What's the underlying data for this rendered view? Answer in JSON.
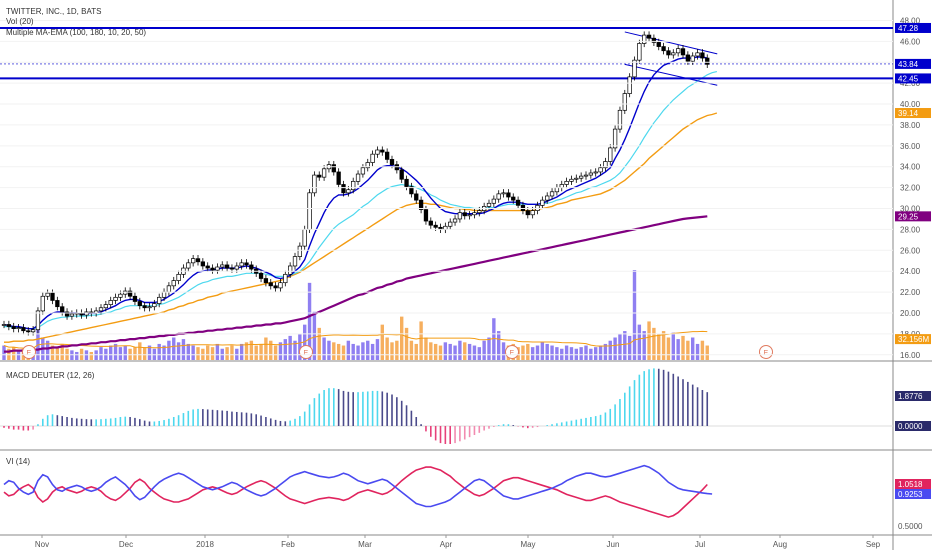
{
  "legends": {
    "main_title": "TWITTER, INC., 1D, BATS",
    "volume": "Vol (20)",
    "ma": "Multiple MA-EMA (100, 180, 10, 20, 50)",
    "macd": "MACD DEUTER (12, 26)",
    "vi": "VI (14)"
  },
  "colors": {
    "up_candle": "#ffffff",
    "down_candle": "#000000",
    "wick": "#000000",
    "resistance": "#0000cc",
    "ema10": "#0000cc",
    "ema20": "#4dd8ee",
    "ma50": "#f39c12",
    "ma180": "#800080",
    "vol_up": "#7b68ee",
    "vol_down": "#f5a142",
    "vol_ma": "#f39c12",
    "macd_pos": "#4dd8ee",
    "macd_neg_up": "#e7417a",
    "macd_pos_down": "#4a4a8a",
    "vi_plus": "#4a4af0",
    "vi_minus": "#e0245e",
    "earnings": "#e07a5f"
  },
  "price_axis": {
    "ticks": [
      "48.00",
      "46.00",
      "44.00",
      "42.00",
      "40.00",
      "38.00",
      "36.00",
      "34.00",
      "32.00",
      "30.00",
      "28.00",
      "26.00",
      "24.00",
      "22.00",
      "20.00",
      "18.00",
      "16.00"
    ],
    "tags": [
      {
        "label": "47.28",
        "value": 47.28,
        "color": "#0000cc"
      },
      {
        "label": "43.84",
        "value": 43.84,
        "color": "#0000cc"
      },
      {
        "label": "42.45",
        "value": 42.45,
        "color": "#0000cc"
      },
      {
        "label": "39.14",
        "value": 39.14,
        "color": "#f39c12"
      },
      {
        "label": "29.25",
        "value": 29.25,
        "color": "#800080"
      },
      {
        "label": "32.156M",
        "value": 17.5,
        "color": "#f39c12"
      }
    ]
  },
  "macd_axis": {
    "tags": [
      {
        "label": "1.8776",
        "color": "#2a2a6a"
      },
      {
        "label": "0.0000",
        "color": "#2a2a6a"
      }
    ]
  },
  "vi_axis": {
    "ticks": [
      "0.5000"
    ],
    "tags": [
      {
        "label": "1.0518",
        "color": "#e0245e"
      },
      {
        "label": "0.9253",
        "color": "#4a4af0"
      }
    ]
  },
  "x_axis": {
    "labels": [
      "Nov",
      "Dec",
      "2018",
      "Feb",
      "Mar",
      "Apr",
      "May",
      "Jun",
      "Jul",
      "Aug",
      "Sep"
    ]
  },
  "earnings_marker_label": "E",
  "chart_data": {
    "type": "candlestick",
    "title": "TWITTER, INC., 1D, BATS",
    "ylim": [
      15.5,
      49
    ],
    "resistance_levels": [
      47.28,
      42.45
    ],
    "trend_channel": {
      "from": [
        46.9,
        43.8
      ],
      "to": [
        44.8,
        41.8
      ]
    },
    "close": [
      18.9,
      18.7,
      18.5,
      18.6,
      18.3,
      18.2,
      18.4,
      20.2,
      21.6,
      21.9,
      21.2,
      20.6,
      20.1,
      19.7,
      19.9,
      20.0,
      19.8,
      20.1,
      20.0,
      20.2,
      20.5,
      20.8,
      21.2,
      21.5,
      21.8,
      22.1,
      21.6,
      21.1,
      20.7,
      20.5,
      20.6,
      20.9,
      21.5,
      22.0,
      22.6,
      23.1,
      23.7,
      24.3,
      24.8,
      25.2,
      24.9,
      24.5,
      24.3,
      24.1,
      24.4,
      24.6,
      24.3,
      24.2,
      24.5,
      24.8,
      24.6,
      24.2,
      23.8,
      23.3,
      22.9,
      22.6,
      22.4,
      22.9,
      23.7,
      24.5,
      25.4,
      26.4,
      28.0,
      31.5,
      33.2,
      33.0,
      33.8,
      34.2,
      33.5,
      32.3,
      31.5,
      31.8,
      32.6,
      33.3,
      33.9,
      34.4,
      35.2,
      35.6,
      35.4,
      34.7,
      34.2,
      33.7,
      32.8,
      32.1,
      31.4,
      30.8,
      29.9,
      28.8,
      28.4,
      28.2,
      28.0,
      28.3,
      28.7,
      29.0,
      29.6,
      29.3,
      29.4,
      29.6,
      29.8,
      30.2,
      30.5,
      30.9,
      31.4,
      31.5,
      31.1,
      30.8,
      30.3,
      29.8,
      29.4,
      29.8,
      30.3,
      30.8,
      31.2,
      31.6,
      32.0,
      32.3,
      32.6,
      32.8,
      32.9,
      33.1,
      33.2,
      33.4,
      33.5,
      33.9,
      34.5,
      35.8,
      37.6,
      39.4,
      41.0,
      42.6,
      44.2,
      45.8,
      46.6,
      46.3,
      45.9,
      45.5,
      45.1,
      44.7,
      44.9,
      45.3,
      44.7,
      44.1,
      44.6,
      44.9,
      44.4,
      43.8
    ],
    "ema10": [
      18.9,
      18.8,
      18.7,
      18.7,
      18.6,
      18.5,
      18.5,
      18.8,
      19.3,
      19.7,
      20.0,
      20.1,
      20.1,
      20.0,
      20.0,
      20.0,
      19.9,
      19.9,
      20.0,
      20.0,
      20.1,
      20.3,
      20.5,
      20.7,
      21.0,
      21.2,
      21.3,
      21.3,
      21.2,
      21.0,
      21.0,
      21.0,
      21.1,
      21.3,
      21.6,
      21.9,
      22.3,
      22.7,
      23.2,
      23.6,
      23.9,
      24.0,
      24.1,
      24.1,
      24.2,
      24.3,
      24.3,
      24.3,
      24.3,
      24.4,
      24.5,
      24.4,
      24.3,
      24.1,
      23.9,
      23.7,
      23.4,
      23.3,
      23.4,
      23.6,
      24.0,
      24.4,
      25.1,
      26.4,
      27.6,
      28.6,
      29.6,
      30.4,
      31.0,
      31.3,
      31.3,
      31.4,
      31.6,
      31.9,
      32.3,
      32.7,
      33.2,
      33.7,
      34.0,
      34.1,
      34.1,
      34.0,
      33.8,
      33.5,
      33.1,
      32.7,
      32.2,
      31.6,
      31.0,
      30.5,
      30.0,
      29.7,
      29.6,
      29.5,
      29.5,
      29.5,
      29.5,
      29.5,
      29.5,
      29.6,
      29.8,
      30.0,
      30.3,
      30.5,
      30.6,
      30.6,
      30.6,
      30.5,
      30.4,
      30.4,
      30.4,
      30.5,
      30.7,
      30.9,
      31.1,
      31.4,
      31.7,
      31.9,
      32.1,
      32.3,
      32.5,
      32.7,
      32.9,
      33.2,
      33.5,
      33.9,
      34.8,
      35.6,
      36.6,
      37.7,
      38.9,
      40.1,
      41.2,
      42.1,
      42.8,
      43.3,
      43.7,
      43.9,
      44.1,
      44.3,
      44.4,
      44.4,
      44.4,
      44.5,
      44.5,
      44.4
    ],
    "ema20": [
      18.7,
      18.7,
      18.6,
      18.6,
      18.6,
      18.5,
      18.5,
      18.6,
      18.9,
      19.2,
      19.4,
      19.5,
      19.6,
      19.6,
      19.7,
      19.7,
      19.7,
      19.7,
      19.8,
      19.8,
      19.9,
      20.0,
      20.1,
      20.3,
      20.4,
      20.6,
      20.7,
      20.7,
      20.7,
      20.7,
      20.7,
      20.7,
      20.8,
      20.9,
      21.1,
      21.3,
      21.5,
      21.8,
      22.1,
      22.4,
      22.7,
      22.9,
      23.0,
      23.2,
      23.3,
      23.4,
      23.5,
      23.5,
      23.6,
      23.7,
      23.8,
      23.8,
      23.8,
      23.8,
      23.7,
      23.6,
      23.5,
      23.5,
      23.5,
      23.6,
      23.8,
      24.0,
      24.4,
      24.9,
      25.6,
      26.3,
      26.9,
      27.5,
      28.1,
      28.5,
      28.8,
      29.1,
      29.4,
      29.8,
      30.2,
      30.5,
      30.9,
      31.3,
      31.6,
      31.9,
      32.1,
      32.2,
      32.3,
      32.2,
      32.2,
      32.0,
      31.8,
      31.6,
      31.3,
      31.1,
      30.8,
      30.6,
      30.4,
      30.3,
      30.2,
      30.1,
      30.1,
      30.0,
      30.0,
      30.0,
      30.1,
      30.1,
      30.2,
      30.3,
      30.4,
      30.4,
      30.4,
      30.4,
      30.4,
      30.4,
      30.4,
      30.5,
      30.5,
      30.6,
      30.8,
      30.9,
      31.1,
      31.3,
      31.5,
      31.6,
      31.8,
      32.0,
      32.1,
      32.3,
      32.5,
      32.7,
      33.0,
      33.4,
      34.0,
      34.6,
      35.3,
      36.0,
      36.8,
      37.5,
      38.2,
      38.8,
      39.4,
      39.9,
      40.4,
      40.8,
      41.2,
      41.6,
      41.9,
      42.2,
      42.5,
      42.8,
      43.0,
      43.1
    ],
    "ma50": [
      17.2,
      17.2,
      17.3,
      17.3,
      17.3,
      17.4,
      17.4,
      17.5,
      17.6,
      17.7,
      17.8,
      17.9,
      18.0,
      18.1,
      18.2,
      18.3,
      18.4,
      18.5,
      18.6,
      18.7,
      18.8,
      18.9,
      19.0,
      19.1,
      19.2,
      19.3,
      19.4,
      19.5,
      19.6,
      19.7,
      19.8,
      19.9,
      20.0,
      20.1,
      20.3,
      20.4,
      20.6,
      20.7,
      20.9,
      21.0,
      21.2,
      21.3,
      21.5,
      21.6,
      21.7,
      21.9,
      22.0,
      22.1,
      22.2,
      22.3,
      22.4,
      22.5,
      22.6,
      22.7,
      22.8,
      22.9,
      23.0,
      23.1,
      23.3,
      23.5,
      23.7,
      23.9,
      24.2,
      24.5,
      24.8,
      25.1,
      25.4,
      25.7,
      26.0,
      26.3,
      26.6,
      26.9,
      27.2,
      27.5,
      27.8,
      28.1,
      28.4,
      28.7,
      29.0,
      29.3,
      29.6,
      29.9,
      30.1,
      30.3,
      30.4,
      30.5,
      30.5,
      30.5,
      30.4,
      30.4,
      30.3,
      30.2,
      30.1,
      30.0,
      30.0,
      29.9,
      29.9,
      29.8,
      29.8,
      29.8,
      29.8,
      29.8,
      29.8,
      29.8,
      29.8,
      29.8,
      29.8,
      29.8,
      29.8,
      29.8,
      29.9,
      30.0,
      30.1,
      30.2,
      30.4,
      30.5,
      30.6,
      30.8,
      30.9,
      31.0,
      31.1,
      31.2,
      31.3,
      31.4,
      31.6,
      31.8,
      32.1,
      32.4,
      32.7,
      33.1,
      33.5,
      33.9,
      34.3,
      34.8,
      35.2,
      35.6,
      36.0,
      36.4,
      36.8,
      37.2,
      37.6,
      37.9,
      38.2,
      38.5,
      38.7,
      38.9,
      39.0,
      39.14
    ],
    "ma180": [
      16.3,
      16.3,
      16.4,
      16.4,
      16.4,
      16.5,
      16.5,
      16.5,
      16.6,
      16.6,
      16.7,
      16.7,
      16.8,
      16.8,
      16.9,
      16.9,
      17.0,
      17.0,
      17.1,
      17.1,
      17.2,
      17.2,
      17.3,
      17.3,
      17.4,
      17.4,
      17.5,
      17.5,
      17.6,
      17.6,
      17.7,
      17.7,
      17.8,
      17.8,
      17.9,
      17.9,
      18.0,
      18.0,
      18.1,
      18.1,
      18.2,
      18.2,
      18.3,
      18.3,
      18.4,
      18.4,
      18.5,
      18.5,
      18.6,
      18.6,
      18.7,
      18.7,
      18.8,
      18.8,
      18.9,
      18.9,
      19.0,
      19.0,
      19.1,
      19.2,
      19.3,
      19.4,
      19.5,
      19.7,
      19.9,
      20.1,
      20.3,
      20.5,
      20.7,
      20.9,
      21.1,
      21.3,
      21.5,
      21.7,
      21.8,
      22.0,
      22.2,
      22.4,
      22.5,
      22.7,
      22.8,
      23.0,
      23.1,
      23.3,
      23.4,
      23.5,
      23.6,
      23.7,
      23.8,
      23.9,
      24.0,
      24.1,
      24.2,
      24.3,
      24.4,
      24.5,
      24.6,
      24.7,
      24.8,
      24.9,
      25.0,
      25.1,
      25.2,
      25.3,
      25.4,
      25.5,
      25.6,
      25.7,
      25.8,
      25.9,
      26.0,
      26.1,
      26.2,
      26.3,
      26.4,
      26.5,
      26.6,
      26.7,
      26.8,
      26.9,
      27.0,
      27.1,
      27.2,
      27.3,
      27.4,
      27.5,
      27.6,
      27.7,
      27.8,
      27.9,
      28.0,
      28.1,
      28.2,
      28.3,
      28.4,
      28.5,
      28.6,
      28.7,
      28.8,
      28.9,
      29.0,
      29.05,
      29.1,
      29.15,
      29.2,
      29.25
    ],
    "volume": [
      9,
      7,
      8,
      6,
      7,
      6,
      8,
      24,
      14,
      12,
      9,
      8,
      10,
      7,
      6,
      5,
      7,
      6,
      5,
      6,
      8,
      7,
      9,
      10,
      8,
      9,
      7,
      8,
      11,
      8,
      9,
      7,
      10,
      9,
      12,
      14,
      11,
      13,
      10,
      9,
      8,
      7,
      9,
      8,
      10,
      7,
      8,
      9,
      7,
      10,
      11,
      12,
      9,
      10,
      14,
      12,
      9,
      11,
      13,
      15,
      12,
      16,
      22,
      48,
      30,
      20,
      14,
      12,
      11,
      10,
      9,
      12,
      10,
      9,
      11,
      12,
      10,
      13,
      22,
      14,
      11,
      12,
      27,
      20,
      12,
      10,
      24,
      14,
      11,
      10,
      9,
      11,
      10,
      9,
      12,
      11,
      10,
      9,
      8,
      12,
      14,
      26,
      18,
      11,
      9,
      10,
      8,
      9,
      10,
      8,
      9,
      11,
      10,
      9,
      8,
      7,
      9,
      8,
      7,
      8,
      9,
      7,
      8,
      9,
      10,
      12,
      14,
      16,
      18,
      15,
      56,
      22,
      18,
      24,
      20,
      16,
      18,
      14,
      17,
      13,
      15,
      12,
      14,
      10,
      12,
      9
    ],
    "macd": [
      -0.1,
      -0.15,
      -0.2,
      -0.2,
      -0.25,
      -0.25,
      -0.2,
      0.1,
      0.4,
      0.6,
      0.65,
      0.6,
      0.55,
      0.5,
      0.45,
      0.42,
      0.4,
      0.38,
      0.37,
      0.37,
      0.38,
      0.4,
      0.42,
      0.45,
      0.5,
      0.52,
      0.5,
      0.45,
      0.38,
      0.3,
      0.25,
      0.25,
      0.28,
      0.33,
      0.4,
      0.5,
      0.6,
      0.72,
      0.84,
      0.92,
      0.95,
      0.94,
      0.92,
      0.9,
      0.88,
      0.86,
      0.84,
      0.8,
      0.78,
      0.76,
      0.74,
      0.7,
      0.65,
      0.58,
      0.5,
      0.42,
      0.34,
      0.28,
      0.26,
      0.3,
      0.4,
      0.55,
      0.8,
      1.2,
      1.55,
      1.8,
      2.0,
      2.1,
      2.1,
      2.05,
      1.95,
      1.9,
      1.88,
      1.88,
      1.9,
      1.92,
      1.95,
      1.95,
      1.92,
      1.85,
      1.75,
      1.6,
      1.4,
      1.15,
      0.85,
      0.5,
      0.1,
      -0.3,
      -0.6,
      -0.8,
      -0.95,
      -1.0,
      -1.0,
      -0.95,
      -0.85,
      -0.75,
      -0.62,
      -0.5,
      -0.38,
      -0.25,
      -0.15,
      -0.05,
      0.05,
      0.1,
      0.1,
      0.05,
      -0.02,
      -0.08,
      -0.12,
      -0.1,
      -0.06,
      0.0,
      0.05,
      0.1,
      0.15,
      0.2,
      0.25,
      0.3,
      0.35,
      0.4,
      0.45,
      0.5,
      0.55,
      0.62,
      0.75,
      0.95,
      1.2,
      1.5,
      1.85,
      2.2,
      2.55,
      2.85,
      3.05,
      3.15,
      3.2,
      3.18,
      3.12,
      3.02,
      2.9,
      2.75,
      2.6,
      2.45,
      2.3,
      2.15,
      2.0,
      1.88
    ],
    "vi_plus": [
      1.05,
      1.1,
      1.08,
      1.0,
      0.95,
      0.92,
      0.95,
      1.1,
      1.18,
      1.15,
      1.05,
      0.98,
      0.96,
      1.0,
      1.02,
      1.04,
      1.02,
      0.98,
      0.96,
      0.98,
      1.02,
      1.08,
      1.12,
      1.15,
      1.1,
      1.05,
      0.98,
      0.9,
      0.85,
      0.88,
      0.95,
      1.02,
      1.08,
      1.12,
      1.15,
      1.18,
      1.2,
      1.18,
      1.14,
      1.1,
      1.06,
      1.02,
      1.0,
      0.98,
      1.0,
      1.02,
      1.05,
      1.08,
      1.06,
      1.02,
      0.98,
      0.95,
      0.92,
      0.9,
      0.92,
      0.96,
      1.0,
      1.05,
      1.1,
      1.15,
      1.18,
      1.2,
      1.22,
      1.2,
      1.18,
      1.16,
      1.15,
      1.14,
      1.15,
      1.17,
      1.2,
      1.18,
      1.14,
      1.1,
      1.08,
      1.06,
      1.08,
      1.1,
      1.12,
      1.1,
      1.05,
      1.0,
      0.95,
      0.9,
      0.85,
      0.8,
      0.78,
      0.76,
      0.76,
      0.78,
      0.8,
      0.82,
      0.85,
      0.9,
      0.95,
      1.0,
      1.05,
      1.1,
      1.12,
      1.1,
      1.05,
      1.0,
      0.95,
      0.9,
      0.88,
      0.86,
      0.86,
      0.88,
      0.9,
      0.92,
      0.94,
      0.96,
      0.98,
      1.0,
      1.03,
      1.06,
      1.1,
      1.13,
      1.16,
      1.18,
      1.2,
      1.2,
      1.18,
      1.16,
      1.15,
      1.16,
      1.18,
      1.2,
      1.22,
      1.24,
      1.26,
      1.28,
      1.3,
      1.28,
      1.24,
      1.2,
      1.14,
      1.08,
      1.04,
      1.0,
      0.98,
      0.97,
      0.96,
      0.95,
      0.94,
      0.93,
      0.925
    ],
    "vi_minus": [
      0.95,
      0.9,
      0.92,
      0.98,
      1.02,
      1.05,
      1.0,
      0.88,
      0.82,
      0.86,
      0.95,
      1.0,
      1.02,
      0.98,
      0.96,
      0.94,
      0.96,
      1.0,
      1.02,
      1.0,
      0.96,
      0.9,
      0.86,
      0.84,
      0.88,
      0.94,
      1.0,
      1.08,
      1.12,
      1.08,
      1.0,
      0.95,
      0.9,
      0.86,
      0.84,
      0.82,
      0.82,
      0.84,
      0.86,
      0.9,
      0.94,
      0.98,
      1.0,
      1.02,
      1.0,
      0.97,
      0.94,
      0.92,
      0.94,
      0.98,
      1.02,
      1.05,
      1.08,
      1.1,
      1.08,
      1.04,
      1.0,
      0.95,
      0.9,
      0.86,
      0.84,
      0.82,
      0.8,
      0.82,
      0.84,
      0.86,
      0.87,
      0.88,
      0.87,
      0.86,
      0.84,
      0.86,
      0.9,
      0.94,
      0.96,
      0.98,
      0.96,
      0.94,
      0.92,
      0.94,
      0.98,
      1.04,
      1.1,
      1.15,
      1.2,
      1.24,
      1.26,
      1.28,
      1.28,
      1.26,
      1.24,
      1.2,
      1.16,
      1.1,
      1.05,
      1.0,
      0.96,
      0.92,
      0.9,
      0.92,
      0.96,
      1.0,
      1.05,
      1.1,
      1.12,
      1.14,
      1.14,
      1.12,
      1.1,
      1.08,
      1.06,
      1.04,
      1.02,
      1.0,
      0.98,
      0.95,
      0.92,
      0.9,
      0.88,
      0.86,
      0.84,
      0.84,
      0.86,
      0.88,
      0.9,
      0.88,
      0.85,
      0.82,
      0.8,
      0.78,
      0.76,
      0.74,
      0.72,
      0.7,
      0.68,
      0.66,
      0.64,
      0.62,
      0.64,
      0.68,
      0.74,
      0.8,
      0.86,
      0.92,
      0.98,
      1.05
    ]
  }
}
